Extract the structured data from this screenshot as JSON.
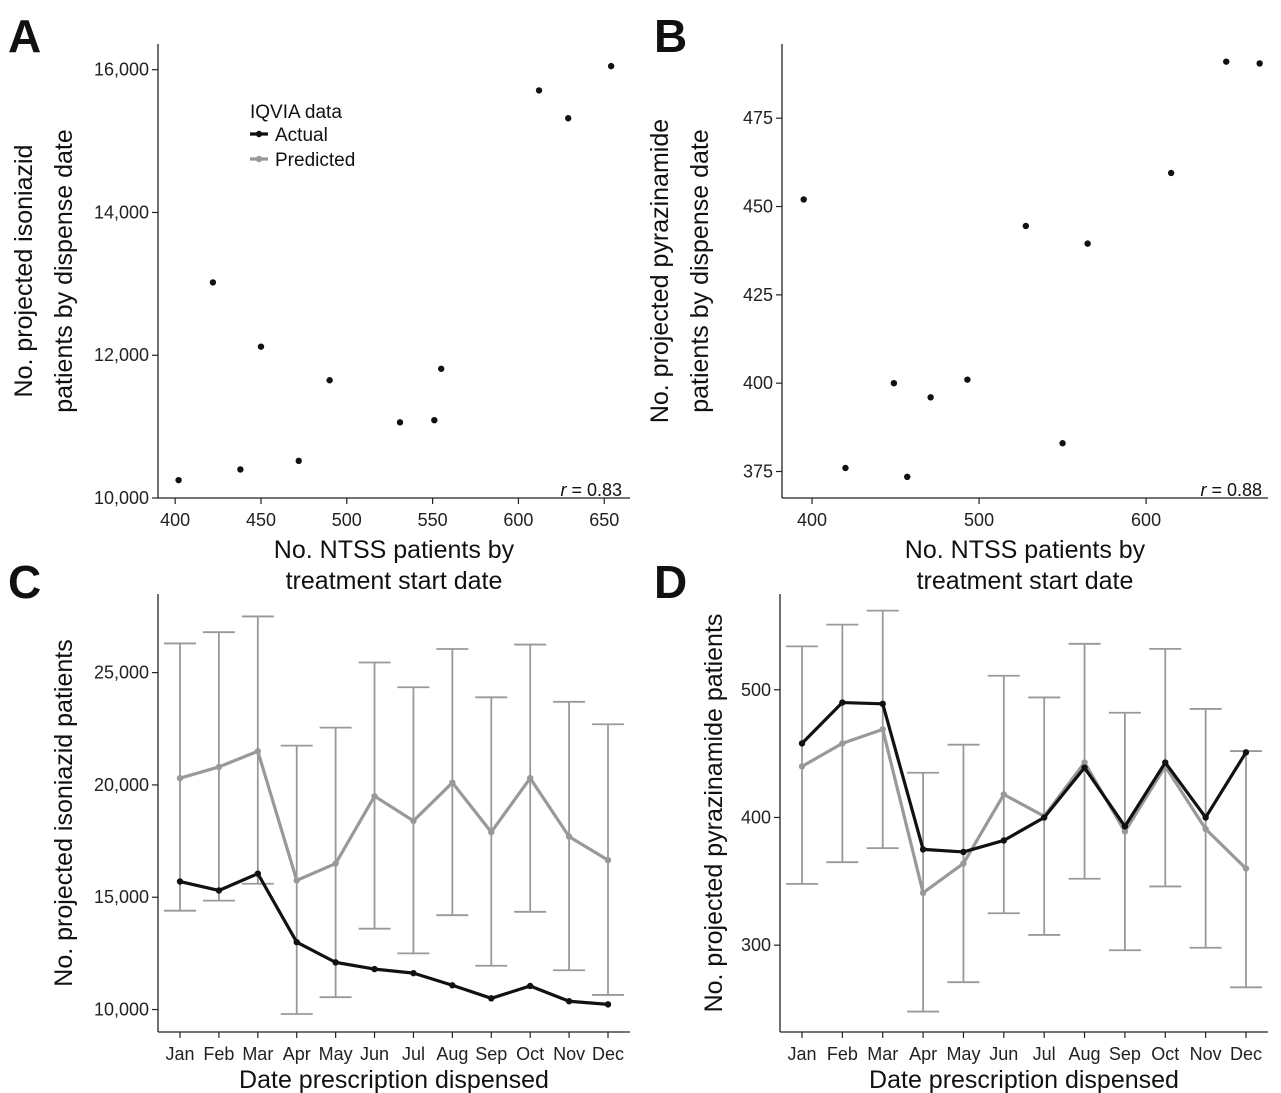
{
  "legend": {
    "title": "IQVIA data",
    "items": [
      {
        "label": "Actual",
        "color": "#111111"
      },
      {
        "label": "Predicted",
        "color": "#999999"
      }
    ]
  },
  "chart_data": [
    {
      "panel": "A",
      "type": "scatter",
      "xlabel": [
        "No. NTSS patients by",
        "treatment start date"
      ],
      "ylabel": [
        "No. projected isoniazid",
        "patients by dispense date"
      ],
      "xlim": [
        390,
        665
      ],
      "ylim": [
        10000,
        16360
      ],
      "xticks": [
        400,
        450,
        500,
        550,
        600,
        650
      ],
      "yticks": [
        10000,
        12000,
        14000,
        16000
      ],
      "tick_format": "comma",
      "annotation": {
        "prefix": "r",
        "text": " = 0.83"
      },
      "points": [
        {
          "x": 402,
          "y": 10250
        },
        {
          "x": 422,
          "y": 13020
        },
        {
          "x": 438,
          "y": 10400
        },
        {
          "x": 450,
          "y": 12120
        },
        {
          "x": 472,
          "y": 10520
        },
        {
          "x": 490,
          "y": 11650
        },
        {
          "x": 531,
          "y": 11060
        },
        {
          "x": 551,
          "y": 11090
        },
        {
          "x": 555,
          "y": 11810
        },
        {
          "x": 612,
          "y": 15710
        },
        {
          "x": 629,
          "y": 15320
        },
        {
          "x": 654,
          "y": 16050
        }
      ]
    },
    {
      "panel": "B",
      "type": "scatter",
      "xlabel": [
        "No. NTSS patients by",
        "treatment start date"
      ],
      "ylabel": [
        "No. projected pyrazinamide",
        "patients by dispense date"
      ],
      "xlim": [
        382,
        673
      ],
      "ylim": [
        367.5,
        496
      ],
      "xticks": [
        400,
        500,
        600
      ],
      "yticks": [
        375,
        400,
        425,
        450,
        475
      ],
      "tick_format": "plain",
      "annotation": {
        "prefix": "r",
        "text": " = 0.88"
      },
      "points": [
        {
          "x": 395,
          "y": 452
        },
        {
          "x": 420,
          "y": 376
        },
        {
          "x": 449,
          "y": 400
        },
        {
          "x": 457,
          "y": 373.5
        },
        {
          "x": 471,
          "y": 396
        },
        {
          "x": 493,
          "y": 401
        },
        {
          "x": 528,
          "y": 444.5
        },
        {
          "x": 550,
          "y": 383
        },
        {
          "x": 565,
          "y": 439.5
        },
        {
          "x": 615,
          "y": 459.5
        },
        {
          "x": 648,
          "y": 491
        },
        {
          "x": 668,
          "y": 490.5
        }
      ]
    },
    {
      "panel": "C",
      "type": "line",
      "xlabel": [
        "Date prescription dispensed"
      ],
      "ylabel": [
        "No. projected isoniazid patients"
      ],
      "categories": [
        "Jan",
        "Feb",
        "Mar",
        "Apr",
        "May",
        "Jun",
        "Jul",
        "Aug",
        "Sep",
        "Oct",
        "Nov",
        "Dec"
      ],
      "ylim": [
        9000,
        28500
      ],
      "yticks": [
        10000,
        15000,
        20000,
        25000
      ],
      "tick_format": "comma",
      "series": [
        {
          "name": "Predicted",
          "color": "#999999",
          "values": [
            20300,
            20800,
            21500,
            15750,
            16500,
            19500,
            18400,
            20100,
            17900,
            20300,
            17700,
            16650
          ],
          "error_low": [
            14400,
            14850,
            15600,
            9800,
            10550,
            13600,
            12500,
            14200,
            11950,
            14350,
            11750,
            10650
          ],
          "error_high": [
            26300,
            26800,
            27500,
            21750,
            22550,
            25450,
            24350,
            26050,
            23900,
            26250,
            23700,
            22700
          ]
        },
        {
          "name": "Actual",
          "color": "#111111",
          "values": [
            15700,
            15300,
            16050,
            13000,
            12100,
            11800,
            11620,
            11080,
            10500,
            11050,
            10370,
            10230
          ]
        }
      ]
    },
    {
      "panel": "D",
      "type": "line",
      "xlabel": [
        "Date prescription dispensed"
      ],
      "ylabel": [
        "No. projected pyrazinamide patients"
      ],
      "categories": [
        "Jan",
        "Feb",
        "Mar",
        "Apr",
        "May",
        "Jun",
        "Jul",
        "Aug",
        "Sep",
        "Oct",
        "Nov",
        "Dec"
      ],
      "ylim": [
        232,
        575
      ],
      "yticks": [
        300,
        400,
        500
      ],
      "tick_format": "plain",
      "series": [
        {
          "name": "Predicted",
          "color": "#999999",
          "values": [
            440,
            458,
            469,
            341,
            364,
            418,
            401,
            443,
            389,
            440,
            391,
            360
          ],
          "error_low": [
            348,
            365,
            376,
            248,
            271,
            325,
            308,
            352,
            296,
            346,
            298,
            267
          ],
          "error_high": [
            534,
            551,
            562,
            435,
            457,
            511,
            494,
            536,
            482,
            532,
            485,
            452
          ]
        },
        {
          "name": "Actual",
          "color": "#111111",
          "values": [
            458,
            490,
            489,
            375,
            373,
            382,
            400,
            439,
            393,
            443,
            400,
            451
          ]
        }
      ]
    }
  ]
}
